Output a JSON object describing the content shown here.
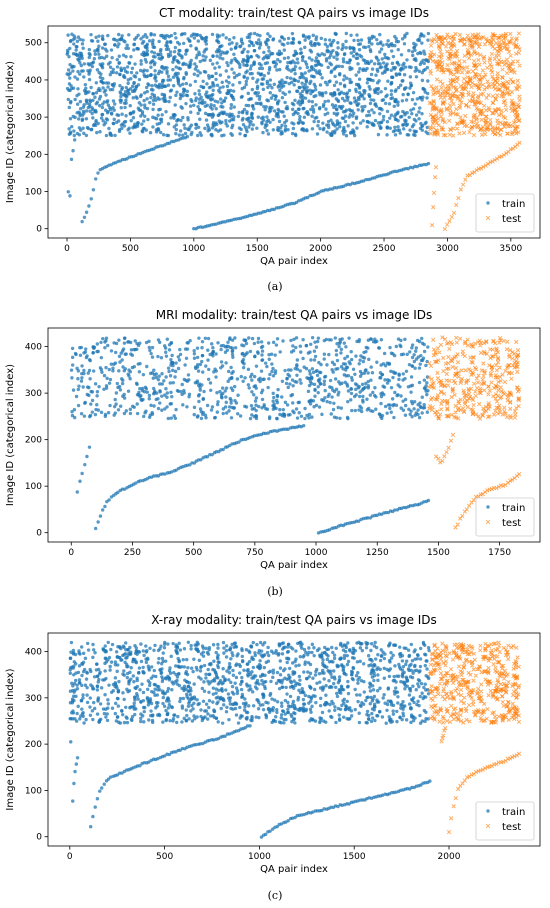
{
  "chart_data": [
    {
      "type": "scatter",
      "panel_label": "(a)",
      "title": "CT modality: train/test QA pairs vs image IDs",
      "xlabel": "QA pair index",
      "ylabel": "Image ID (categorical index)",
      "xlim": [
        -150,
        3730
      ],
      "ylim": [
        -25,
        545
      ],
      "xticks": [
        0,
        500,
        1000,
        1500,
        2000,
        2500,
        3000,
        3500
      ],
      "yticks": [
        0,
        100,
        200,
        300,
        400,
        500
      ],
      "grid": false,
      "legend_position": "bottom-right",
      "series": [
        {
          "name": "train",
          "color": "#1f77b4",
          "marker": "circle",
          "scatter_band": {
            "x_range": [
              0,
              2850
            ],
            "y_range": [
              250,
              525
            ],
            "count": 2000
          },
          "trend_points": [
            [
              10,
              100
            ],
            [
              20,
              60
            ],
            [
              35,
              185
            ],
            [
              50,
              215
            ],
            [
              60,
              240
            ],
            [
              120,
              20
            ],
            [
              150,
              40
            ],
            [
              180,
              70
            ],
            [
              200,
              90
            ],
            [
              220,
              130
            ],
            [
              250,
              155
            ],
            [
              300,
              165
            ],
            [
              400,
              180
            ],
            [
              600,
              205
            ],
            [
              800,
              230
            ],
            [
              950,
              248
            ],
            [
              1000,
              0
            ],
            [
              1200,
              15
            ],
            [
              1500,
              40
            ],
            [
              1800,
              70
            ],
            [
              2000,
              100
            ],
            [
              2300,
              125
            ],
            [
              2600,
              155
            ],
            [
              2850,
              175
            ]
          ]
        },
        {
          "name": "test",
          "color": "#ff7f0e",
          "marker": "x",
          "scatter_band": {
            "x_range": [
              2860,
              3570
            ],
            "y_range": [
              250,
              525
            ],
            "count": 650
          },
          "trend_points": [
            [
              2880,
              10
            ],
            [
              2900,
              130
            ],
            [
              2910,
              165
            ],
            [
              2980,
              0
            ],
            [
              3050,
              40
            ],
            [
              3100,
              100
            ],
            [
              3150,
              140
            ],
            [
              3300,
              170
            ],
            [
              3450,
              200
            ],
            [
              3570,
              230
            ]
          ]
        }
      ]
    },
    {
      "type": "scatter",
      "panel_label": "(b)",
      "title": "MRI modality: train/test QA pairs vs image IDs",
      "xlabel": "QA pair index",
      "ylabel": "Image ID (categorical index)",
      "xlim": [
        -95,
        1915
      ],
      "ylim": [
        -20,
        440
      ],
      "xticks": [
        0,
        250,
        500,
        750,
        1000,
        1250,
        1500,
        1750
      ],
      "yticks": [
        0,
        100,
        200,
        300,
        400
      ],
      "grid": false,
      "legend_position": "bottom-right",
      "series": [
        {
          "name": "train",
          "color": "#1f77b4",
          "marker": "circle",
          "scatter_band": {
            "x_range": [
              0,
              1460
            ],
            "y_range": [
              245,
              420
            ],
            "count": 1000
          },
          "trend_points": [
            [
              25,
              88
            ],
            [
              45,
              130
            ],
            [
              60,
              155
            ],
            [
              75,
              185
            ],
            [
              100,
              8
            ],
            [
              130,
              50
            ],
            [
              150,
              70
            ],
            [
              200,
              90
            ],
            [
              300,
              115
            ],
            [
              400,
              130
            ],
            [
              500,
              150
            ],
            [
              600,
              175
            ],
            [
              700,
              200
            ],
            [
              800,
              215
            ],
            [
              950,
              230
            ],
            [
              1010,
              0
            ],
            [
              1100,
              15
            ],
            [
              1200,
              30
            ],
            [
              1300,
              45
            ],
            [
              1460,
              68
            ]
          ]
        },
        {
          "name": "test",
          "color": "#ff7f0e",
          "marker": "x",
          "scatter_band": {
            "x_range": [
              1460,
              1830
            ],
            "y_range": [
              245,
              420
            ],
            "count": 350
          },
          "trend_points": [
            [
              1490,
              165
            ],
            [
              1510,
              150
            ],
            [
              1540,
              180
            ],
            [
              1560,
              210
            ],
            [
              1570,
              10
            ],
            [
              1600,
              40
            ],
            [
              1650,
              75
            ],
            [
              1700,
              90
            ],
            [
              1780,
              105
            ],
            [
              1830,
              125
            ]
          ]
        }
      ]
    },
    {
      "type": "scatter",
      "panel_label": "(c)",
      "title": "X-ray modality: train/test QA pairs vs image IDs",
      "xlabel": "QA pair index",
      "ylabel": "Image ID (categorical index)",
      "xlim": [
        -115,
        2480
      ],
      "ylim": [
        -20,
        440
      ],
      "xticks": [
        0,
        500,
        1000,
        1500,
        2000
      ],
      "yticks": [
        0,
        100,
        200,
        300,
        400
      ],
      "grid": false,
      "legend_position": "bottom-right",
      "series": [
        {
          "name": "train",
          "color": "#1f77b4",
          "marker": "circle",
          "scatter_band": {
            "x_range": [
              0,
              1900
            ],
            "y_range": [
              245,
              420
            ],
            "count": 1500
          },
          "trend_points": [
            [
              5,
              205
            ],
            [
              15,
              75
            ],
            [
              25,
              135
            ],
            [
              40,
              170
            ],
            [
              110,
              20
            ],
            [
              130,
              60
            ],
            [
              160,
              100
            ],
            [
              200,
              125
            ],
            [
              400,
              160
            ],
            [
              600,
              190
            ],
            [
              800,
              215
            ],
            [
              950,
              240
            ],
            [
              1010,
              0
            ],
            [
              1100,
              25
            ],
            [
              1200,
              45
            ],
            [
              1400,
              65
            ],
            [
              1600,
              85
            ],
            [
              1800,
              105
            ],
            [
              1900,
              120
            ]
          ]
        },
        {
          "name": "test",
          "color": "#ff7f0e",
          "marker": "x",
          "scatter_band": {
            "x_range": [
              1900,
              2370
            ],
            "y_range": [
              245,
              420
            ],
            "count": 450
          },
          "trend_points": [
            [
              1960,
              205
            ],
            [
              1980,
              235
            ],
            [
              2000,
              10
            ],
            [
              2020,
              60
            ],
            [
              2050,
              105
            ],
            [
              2100,
              130
            ],
            [
              2200,
              150
            ],
            [
              2300,
              165
            ],
            [
              2370,
              178
            ]
          ]
        }
      ]
    }
  ]
}
